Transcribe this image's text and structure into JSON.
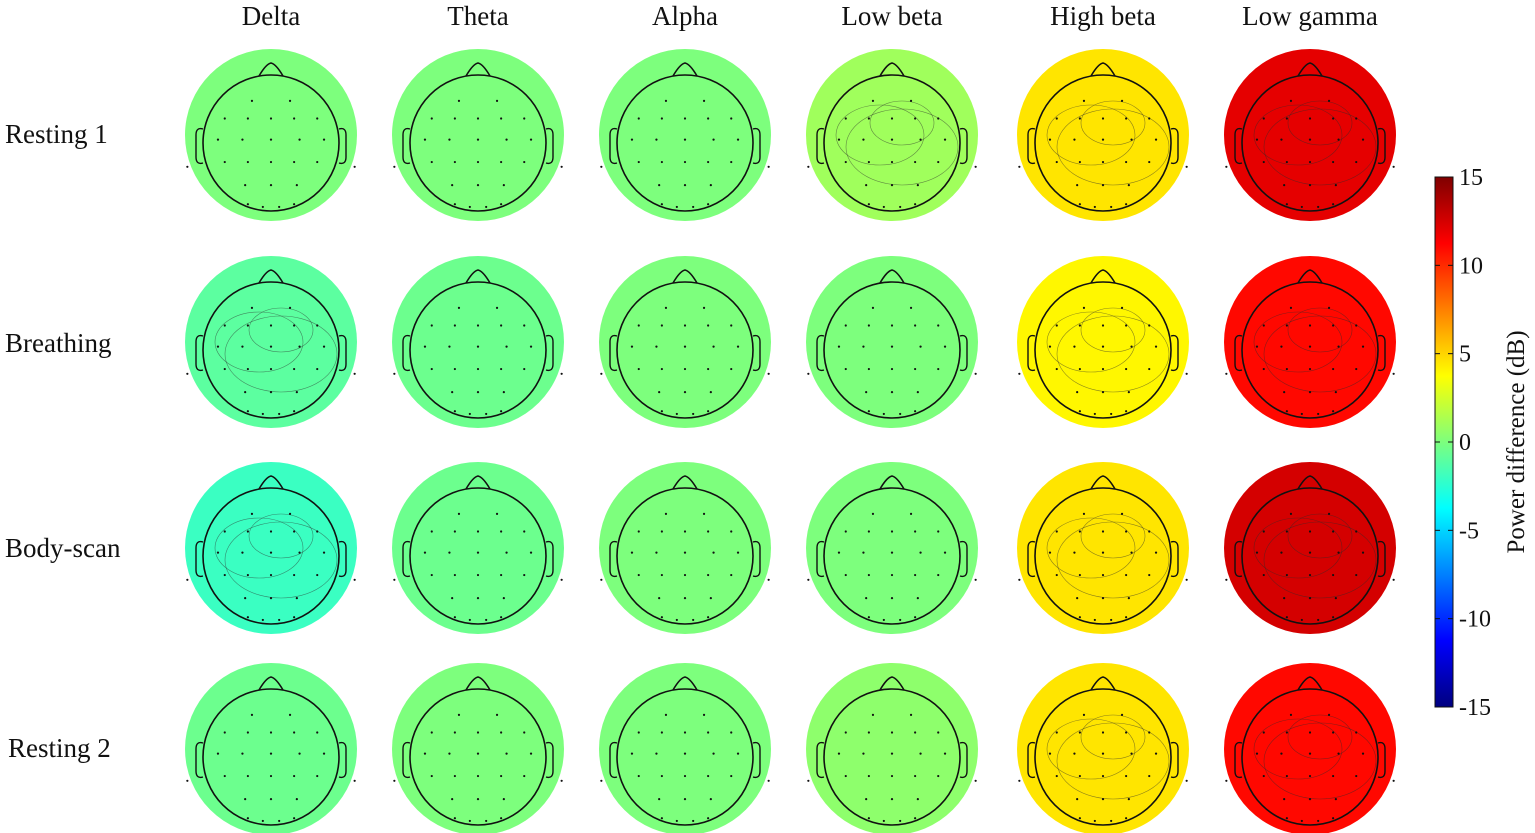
{
  "chart_data": {
    "type": "heatmap",
    "subtype": "eeg-topographic-maps",
    "columns": [
      "Delta",
      "Theta",
      "Alpha",
      "Low beta",
      "High beta",
      "Low gamma"
    ],
    "rows": [
      "Resting 1",
      "Breathing",
      "Body-scan",
      "Resting 2"
    ],
    "colorbar": {
      "label": "Power difference (dB)",
      "range": [
        -15,
        15
      ],
      "ticks": [
        "15",
        "10",
        "5",
        "0",
        "-5",
        "-10",
        "-15"
      ],
      "tick_values": [
        15,
        10,
        5,
        0,
        -5,
        -10,
        -15
      ],
      "colormap": "jet"
    },
    "approx_mean_power_db": [
      [
        0,
        0,
        0,
        1,
        4.5,
        12
      ],
      [
        -1,
        -0.5,
        0,
        0,
        4,
        11
      ],
      [
        -2,
        -0.5,
        0,
        0,
        4.5,
        12.5
      ],
      [
        -0.5,
        0,
        0,
        0.5,
        4.5,
        11
      ]
    ],
    "grid": false,
    "legend_position": "right"
  },
  "colors": {
    "neutral_green": "#7be67b",
    "contour": "#2b2b2b",
    "head_outline": "#111111"
  }
}
